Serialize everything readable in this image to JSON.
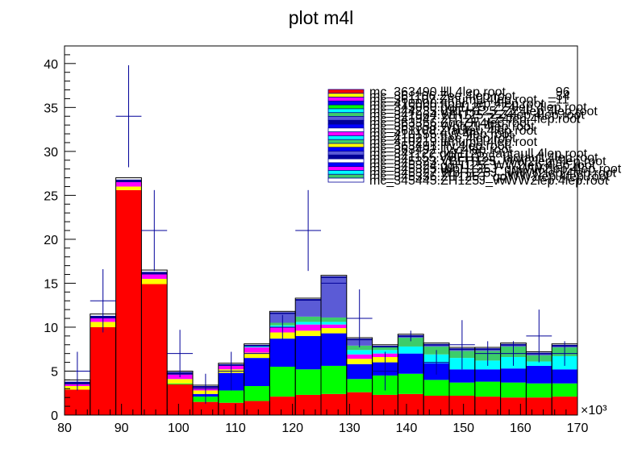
{
  "chart_data": {
    "type": "bar",
    "title": "plot m4l",
    "xlabel": "",
    "ylabel": "",
    "x_multiplier_label": "×10³",
    "xlim": [
      80,
      170
    ],
    "ylim": [
      0,
      42
    ],
    "x_ticks": [
      80,
      90,
      100,
      110,
      120,
      130,
      140,
      150,
      160,
      170
    ],
    "y_ticks": [
      0,
      5,
      10,
      15,
      20,
      25,
      30,
      35,
      40
    ],
    "bin_edges": [
      80,
      84.5,
      89,
      93.5,
      98,
      102.5,
      107,
      111.5,
      116,
      120.5,
      125,
      129.5,
      134,
      138.5,
      143,
      147.5,
      152,
      156.5,
      161,
      165.5,
      170
    ],
    "stack_series": [
      {
        "color": "#ff0000",
        "values": [
          2.9,
          10.0,
          25.6,
          14.9,
          3.5,
          1.5,
          1.4,
          1.6,
          2.1,
          2.3,
          2.4,
          2.6,
          2.3,
          2.4,
          2.2,
          2.2,
          2.1,
          2.0,
          2.0,
          2.1
        ]
      },
      {
        "color": "#00ff00",
        "values": [
          0.0,
          0.0,
          0.0,
          0.0,
          0.1,
          0.6,
          1.4,
          1.7,
          3.4,
          2.9,
          3.2,
          1.5,
          2.2,
          2.3,
          1.8,
          1.5,
          1.7,
          1.7,
          1.6,
          1.5
        ]
      },
      {
        "color": "#0000ff",
        "values": [
          0.0,
          0.0,
          0.0,
          0.0,
          0.0,
          0.3,
          2.0,
          3.2,
          3.2,
          3.8,
          3.7,
          1.7,
          1.5,
          2.3,
          1.9,
          1.5,
          1.4,
          1.6,
          2.0,
          1.6
        ]
      },
      {
        "color": "#ffff00",
        "values": [
          0.4,
          0.6,
          0.4,
          0.6,
          0.5,
          0.4,
          0.4,
          0.6,
          0.7,
          0.6,
          0.6,
          0.6,
          0.6,
          0.0,
          0.0,
          0.0,
          0.0,
          0.0,
          0.0,
          0.0
        ]
      },
      {
        "color": "#ff00ff",
        "values": [
          0.2,
          0.4,
          0.5,
          0.5,
          0.5,
          0.3,
          0.4,
          0.6,
          0.6,
          0.7,
          0.4,
          0.5,
          0.4,
          0.0,
          0.0,
          0.0,
          0.0,
          0.0,
          0.0,
          0.0
        ]
      },
      {
        "color": "#00ffff",
        "values": [
          0.0,
          0.0,
          0.0,
          0.0,
          0.0,
          0.0,
          0.0,
          0.1,
          0.2,
          0.3,
          0.3,
          0.5,
          0.4,
          0.8,
          1.0,
          1.3,
          1.0,
          1.3,
          0.5,
          1.5
        ]
      },
      {
        "color": "#3dcc6a",
        "values": [
          0.0,
          0.0,
          0.0,
          0.0,
          0.0,
          0.0,
          0.0,
          0.0,
          0.3,
          0.6,
          0.5,
          0.5,
          0.3,
          1.0,
          0.9,
          0.8,
          1.1,
          1.2,
          0.7,
          1.0
        ]
      },
      {
        "color": "#5b5bd6",
        "values": [
          0.0,
          0.0,
          0.0,
          0.0,
          0.0,
          0.0,
          0.0,
          0.0,
          1.0,
          1.8,
          4.5,
          0.6,
          0.0,
          0.1,
          0.1,
          0.1,
          0.1,
          0.1,
          0.1,
          0.1
        ]
      },
      {
        "color": "#000099",
        "values": [
          0.3,
          0.3,
          0.3,
          0.3,
          0.3,
          0.2,
          0.2,
          0.2,
          0.2,
          0.2,
          0.2,
          0.2,
          0.2,
          0.2,
          0.2,
          0.2,
          0.2,
          0.2,
          0.2,
          0.2
        ]
      },
      {
        "color": "#ffffff",
        "values": [
          0.2,
          0.2,
          0.2,
          0.2,
          0.1,
          0.1,
          0.1,
          0.1,
          0.1,
          0.1,
          0.1,
          0.1,
          0.1,
          0.1,
          0.1,
          0.1,
          0.1,
          0.1,
          0.1,
          0.1
        ]
      }
    ],
    "data_points": [
      {
        "x": 82.25,
        "y": 5.0,
        "err": 2.2
      },
      {
        "x": 86.75,
        "y": 13.0,
        "err": 3.6
      },
      {
        "x": 91.25,
        "y": 34.0,
        "err": 5.8
      },
      {
        "x": 95.75,
        "y": 21.0,
        "err": 4.6
      },
      {
        "x": 100.25,
        "y": 7.0,
        "err": 2.7
      },
      {
        "x": 104.75,
        "y": 3.0,
        "err": 1.7
      },
      {
        "x": 109.25,
        "y": 5.0,
        "err": 2.2
      },
      {
        "x": 113.75,
        "y": 7.0,
        "err": 0
      },
      {
        "x": 118.25,
        "y": 10.0,
        "err": 1.4
      },
      {
        "x": 122.75,
        "y": 21.0,
        "err": 4.6
      },
      {
        "x": 127.25,
        "y": 15.0,
        "err": 0
      },
      {
        "x": 131.75,
        "y": 11.0,
        "err": 3.3
      },
      {
        "x": 136.25,
        "y": 5.0,
        "err": 2.2
      },
      {
        "x": 140.75,
        "y": 9.0,
        "err": 0.6
      },
      {
        "x": 145.25,
        "y": 6.0,
        "err": 1.4
      },
      {
        "x": 149.75,
        "y": 8.0,
        "err": 2.8
      },
      {
        "x": 154.25,
        "y": 7.0,
        "err": 1.4
      },
      {
        "x": 158.75,
        "y": 7.0,
        "err": 1.4
      },
      {
        "x": 163.25,
        "y": 9.0,
        "err": 3.0
      },
      {
        "x": 167.75,
        "y": 7.0,
        "err": 1.4
      }
    ],
    "legend": {
      "placement": "top-right",
      "entries": [
        {
          "label": "mc_363490.llll.4lep.root",
          "color": "#ff0000",
          "overlap_text": "_96"
        },
        {
          "label": "mc_361106.Zee.4lep.root",
          "color": "#ffff00",
          "overlap_text": "_34"
        },
        {
          "label": "mc_361107.Zmumu.4lep.root",
          "color": "#ff00ff",
          "overlap_text": "_11"
        },
        {
          "label": "mc_410000.ttbar_lep.4lep.root",
          "color": "#0000ff"
        },
        {
          "label": "mc_345060.ggH125_ZZ4lep.4lep.root",
          "color": "#00ff00"
        },
        {
          "label": "mc_344235.VBFH125_ZZ4lep.4lep.root",
          "color": "#00ffff"
        },
        {
          "label": "mc_341964.WH125_ZZ4lep.4lep.root",
          "color": "#3dcc6a"
        },
        {
          "label": "mc_341947.ZH125_ZZ4lep.4lep.root",
          "color": "#5b5bd6"
        },
        {
          "label": "mc_363356.ZqqZll.4lep.root",
          "color": "#000099"
        },
        {
          "label": "mc_363358.WqqZll.4lep.root",
          "color": "#0000ff"
        },
        {
          "label": "mc_361108.Ztautau.4lep.root",
          "color": "#ffffff"
        },
        {
          "label": "mc_410155.ttW.4lep.root",
          "color": "#ff00ff"
        },
        {
          "label": "mc_410218.ttee.4lep.root",
          "color": "#00ffff"
        },
        {
          "label": "mc_410219.ttmumu.4lep.root",
          "color": "#3dcc6a"
        },
        {
          "label": "mc_363491.lllv.4lep.root",
          "color": "#ffff00"
        },
        {
          "label": "mc_363492.llvv.4lep.root",
          "color": "#0000ff"
        },
        {
          "label": "mc_341122.ggH125_tautaull.4lep.root",
          "color": "#5b5bd6"
        },
        {
          "label": "mc_341155.VBFH125_tautaull.4lep.root",
          "color": "#000099"
        },
        {
          "label": "mc_345323.VBFH125_WW2lep.4lep.root",
          "color": "#ffffff"
        },
        {
          "label": "mc_345324.ggH125_WW2lep.4lep.root",
          "color": "#0000ff"
        },
        {
          "label": "mc_345325.WpH125J_qqWW2lep.4lep.root",
          "color": "#ff00ff"
        },
        {
          "label": "mc_345327.WpH125J_lvWW2lep.4lep.root",
          "color": "#00ffff"
        },
        {
          "label": "mc_345336.ZH125J_qqWW2lep.4lep.root",
          "color": "#3dcc6a"
        },
        {
          "label": "mc_345445.ZH125J_vvWW2lep.4lep.root",
          "color": "#ffffff"
        }
      ]
    },
    "grid": false
  }
}
